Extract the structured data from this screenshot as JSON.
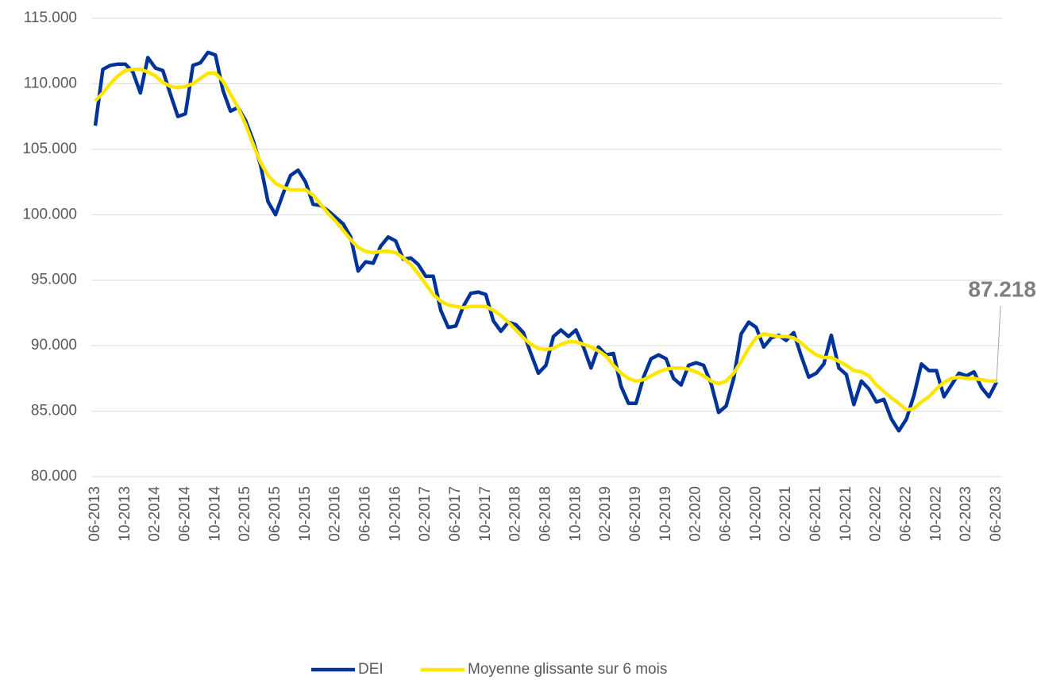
{
  "chart_data": {
    "type": "line",
    "categories": [
      "06-2013",
      null,
      null,
      null,
      "10-2013",
      null,
      null,
      null,
      "02-2014",
      null,
      null,
      null,
      "06-2014",
      null,
      null,
      null,
      "10-2014",
      null,
      null,
      null,
      "02-2015",
      null,
      null,
      null,
      "06-2015",
      null,
      null,
      null,
      "10-2015",
      null,
      null,
      null,
      "02-2016",
      null,
      null,
      null,
      "06-2016",
      null,
      null,
      null,
      "10-2016",
      null,
      null,
      null,
      "02-2017",
      null,
      null,
      null,
      "06-2017",
      null,
      null,
      null,
      "10-2017",
      null,
      null,
      null,
      "02-2018",
      null,
      null,
      null,
      "06-2018",
      null,
      null,
      null,
      "10-2018",
      null,
      null,
      null,
      "02-2019",
      null,
      null,
      null,
      "06-2019",
      null,
      null,
      null,
      "10-2019",
      null,
      null,
      null,
      "02-2020",
      null,
      null,
      null,
      "06-2020",
      null,
      null,
      null,
      "10-2020",
      null,
      null,
      null,
      "02-2021",
      null,
      null,
      null,
      "06-2021",
      null,
      null,
      null,
      "10-2021",
      null,
      null,
      null,
      "02-2022",
      null,
      null,
      null,
      "06-2022",
      null,
      null,
      null,
      "10-2022",
      null,
      null,
      null,
      "02-2023",
      null,
      null,
      null,
      "06-2023"
    ],
    "series": [
      {
        "name": "DEI",
        "color": "#003399",
        "values": [
          106800,
          111100,
          111400,
          111500,
          111500,
          110900,
          109300,
          112000,
          111200,
          111000,
          109200,
          107500,
          107700,
          111400,
          111600,
          112400,
          112200,
          109500,
          107900,
          108200,
          107200,
          105700,
          103800,
          101000,
          100000,
          101600,
          103000,
          103400,
          102500,
          100800,
          100700,
          100300,
          99800,
          99300,
          98300,
          95700,
          96400,
          96300,
          97600,
          98300,
          98000,
          96600,
          96700,
          96200,
          95300,
          95300,
          92700,
          91400,
          91500,
          93000,
          94000,
          94100,
          93900,
          91900,
          91100,
          91800,
          91600,
          91000,
          89400,
          87900,
          88500,
          90700,
          91200,
          90700,
          91200,
          89900,
          88300,
          89900,
          89300,
          89400,
          86900,
          85600,
          85600,
          87600,
          89000,
          89300,
          89000,
          87500,
          87000,
          88500,
          88700,
          88500,
          87100,
          84900,
          85400,
          87500,
          90900,
          91800,
          91400,
          89900,
          90600,
          90800,
          90400,
          91000,
          89200,
          87600,
          87900,
          88600,
          90800,
          88300,
          87800,
          85500,
          87300,
          86700,
          85700,
          85900,
          84400,
          83500,
          84400,
          86200,
          88600,
          88100,
          88100,
          86100,
          87000,
          87900,
          87700,
          88000,
          86800,
          86100,
          87218
        ],
        "value_labels": [
          null,
          null,
          null,
          null,
          null,
          null,
          null,
          null,
          null,
          null,
          null,
          null,
          null,
          null,
          null,
          null,
          null,
          null,
          null,
          null,
          null,
          null,
          null,
          null,
          null,
          null,
          null,
          null,
          null,
          null,
          null,
          null,
          null,
          null,
          null,
          null,
          null,
          null,
          null,
          null,
          null,
          null,
          null,
          null,
          null,
          null,
          null,
          null,
          null,
          null,
          null,
          null,
          null,
          null,
          null,
          null,
          null,
          null,
          null,
          null,
          null,
          null,
          null,
          null,
          null,
          null,
          null,
          null,
          null,
          null,
          null,
          null,
          null,
          null,
          null,
          null,
          null,
          null,
          null,
          null,
          null,
          null,
          null,
          null,
          null,
          null,
          null,
          null,
          null,
          null,
          null,
          null,
          null,
          null,
          null,
          null,
          null,
          null,
          null,
          null,
          null,
          null,
          null,
          null,
          null,
          null,
          null,
          null,
          null,
          null,
          null,
          null,
          null,
          null,
          null,
          null,
          null,
          null,
          null,
          null,
          "87.218"
        ]
      },
      {
        "name": "Moyenne glissante sur 6 mois",
        "color": "#ffe600",
        "values": [
          108700,
          109300,
          110000,
          110600,
          111000,
          111100,
          111100,
          110900,
          110600,
          110100,
          109800,
          109700,
          109800,
          110000,
          110400,
          110800,
          110800,
          110200,
          109200,
          108200,
          106900,
          105400,
          104000,
          103000,
          102400,
          102100,
          101900,
          101900,
          101900,
          101500,
          100800,
          100100,
          99500,
          98800,
          98100,
          97500,
          97200,
          97100,
          97200,
          97200,
          97100,
          96700,
          96200,
          95500,
          94700,
          93900,
          93400,
          93100,
          93000,
          92900,
          93000,
          93000,
          93000,
          92700,
          92300,
          91800,
          91200,
          90600,
          90100,
          89800,
          89700,
          89800,
          90100,
          90300,
          90300,
          90100,
          89900,
          89600,
          89200,
          88500,
          87900,
          87500,
          87300,
          87400,
          87700,
          88000,
          88200,
          88300,
          88300,
          88200,
          88000,
          87700,
          87300,
          87100,
          87300,
          87900,
          88800,
          89800,
          90600,
          90900,
          90800,
          90700,
          90700,
          90600,
          90200,
          89700,
          89300,
          89100,
          89100,
          88800,
          88500,
          88100,
          88000,
          87700,
          87000,
          86500,
          86000,
          85600,
          85100,
          85200,
          85700,
          86100,
          86700,
          87200,
          87500,
          87600,
          87500,
          87500,
          87400,
          87300,
          87300
        ]
      }
    ],
    "ylim": [
      80000,
      115000
    ],
    "yticks": [
      {
        "value": 80000,
        "label": "80.000"
      },
      {
        "value": 85000,
        "label": "85.000"
      },
      {
        "value": 90000,
        "label": "90.000"
      },
      {
        "value": 95000,
        "label": "95.000"
      },
      {
        "value": 100000,
        "label": "100.000"
      },
      {
        "value": 105000,
        "label": "105.000"
      },
      {
        "value": 110000,
        "label": "110.000"
      },
      {
        "value": 115000,
        "label": "115.000"
      }
    ],
    "grid": true,
    "legend": "bottom"
  }
}
